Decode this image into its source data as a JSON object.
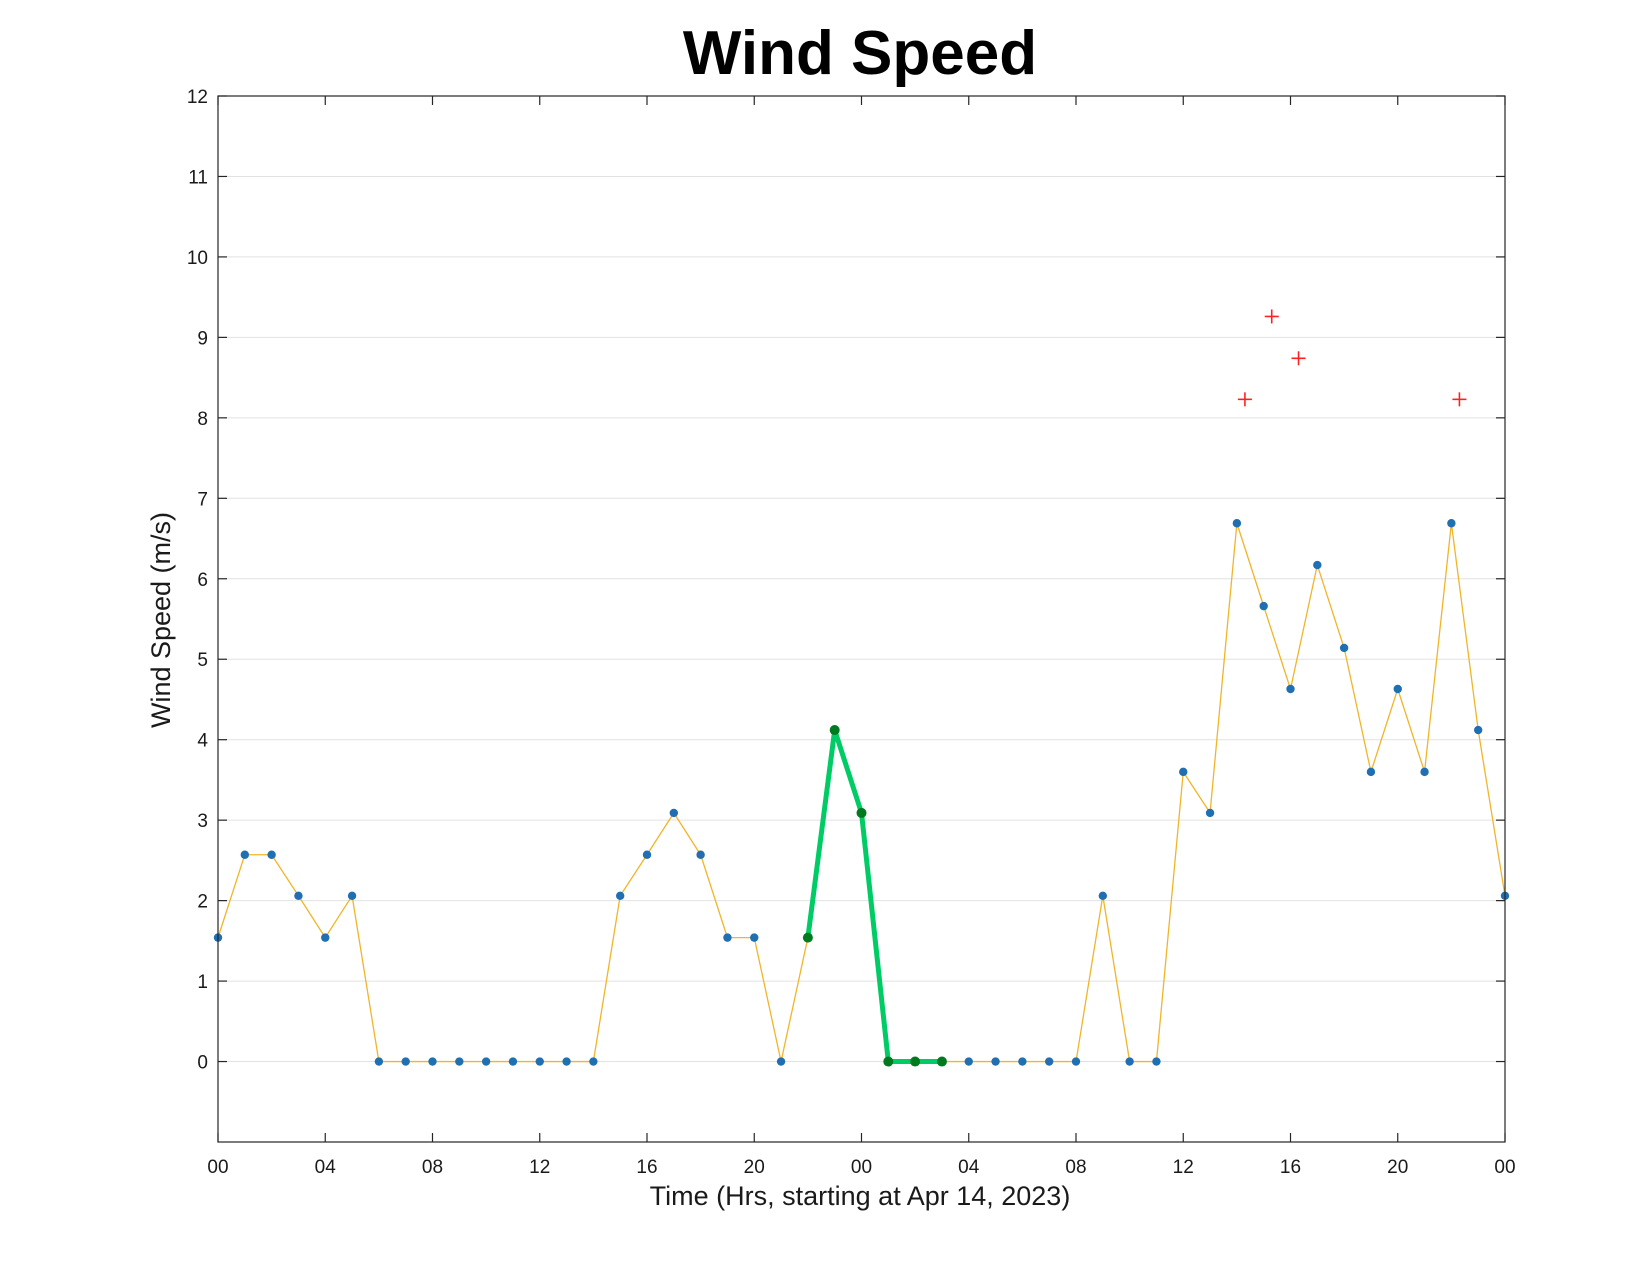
{
  "chart_data": {
    "type": "line",
    "title": "Wind Speed",
    "xlabel": "Time (Hrs, starting at Apr 14, 2023)",
    "ylabel": "Wind Speed (m/s)",
    "xlim_hours": [
      0,
      48
    ],
    "ylim": [
      -1,
      12
    ],
    "yticks": [
      0,
      1,
      2,
      3,
      4,
      5,
      6,
      7,
      8,
      9,
      10,
      11,
      12
    ],
    "xticks": [
      {
        "hour": 0,
        "label": "00"
      },
      {
        "hour": 4,
        "label": "04"
      },
      {
        "hour": 8,
        "label": "08"
      },
      {
        "hour": 12,
        "label": "12"
      },
      {
        "hour": 16,
        "label": "16"
      },
      {
        "hour": 20,
        "label": "20"
      },
      {
        "hour": 24,
        "label": "00"
      },
      {
        "hour": 28,
        "label": "04"
      },
      {
        "hour": 32,
        "label": "08"
      },
      {
        "hour": 36,
        "label": "12"
      },
      {
        "hour": 40,
        "label": "16"
      },
      {
        "hour": 44,
        "label": "20"
      },
      {
        "hour": 48,
        "label": "00"
      }
    ],
    "grid": "horizontal",
    "series": [
      {
        "role": "measurements",
        "color": "#f0b52a",
        "marker_color": "#1f6fb2",
        "x": [
          0,
          1,
          2,
          3,
          4,
          5,
          6,
          7,
          8,
          9,
          10,
          11,
          12,
          13,
          14,
          15,
          16,
          17,
          18,
          19,
          20,
          21,
          22,
          23,
          24,
          25,
          26,
          27,
          28,
          29,
          30,
          31,
          32,
          33,
          34,
          35,
          36,
          37,
          38,
          39,
          40,
          41,
          42,
          43,
          44,
          45,
          46,
          47,
          48
        ],
        "values": [
          1.54,
          2.57,
          2.57,
          2.06,
          1.54,
          2.06,
          0,
          0,
          0,
          0,
          0,
          0,
          0,
          0,
          0,
          2.06,
          2.57,
          3.09,
          2.57,
          1.54,
          1.54,
          0,
          1.54,
          4.12,
          3.09,
          0,
          0,
          0,
          0,
          0,
          0,
          0,
          0,
          2.06,
          0,
          0,
          3.6,
          3.09,
          6.69,
          5.66,
          4.63,
          6.17,
          5.14,
          3.6,
          4.63,
          3.6,
          6.69,
          4.12,
          2.06
        ]
      },
      {
        "role": "highlighted-segment",
        "color": "#00cc66",
        "marker_color": "#007a1f",
        "x": [
          22,
          23,
          24,
          25,
          26,
          27
        ],
        "values": [
          1.54,
          4.12,
          3.09,
          0,
          0,
          0
        ]
      },
      {
        "role": "gusts",
        "color": "#ff2020",
        "marker": "plus",
        "x": [
          38.3,
          39.3,
          40.3,
          46.3
        ],
        "values": [
          8.23,
          9.26,
          8.74,
          8.23
        ]
      }
    ]
  }
}
